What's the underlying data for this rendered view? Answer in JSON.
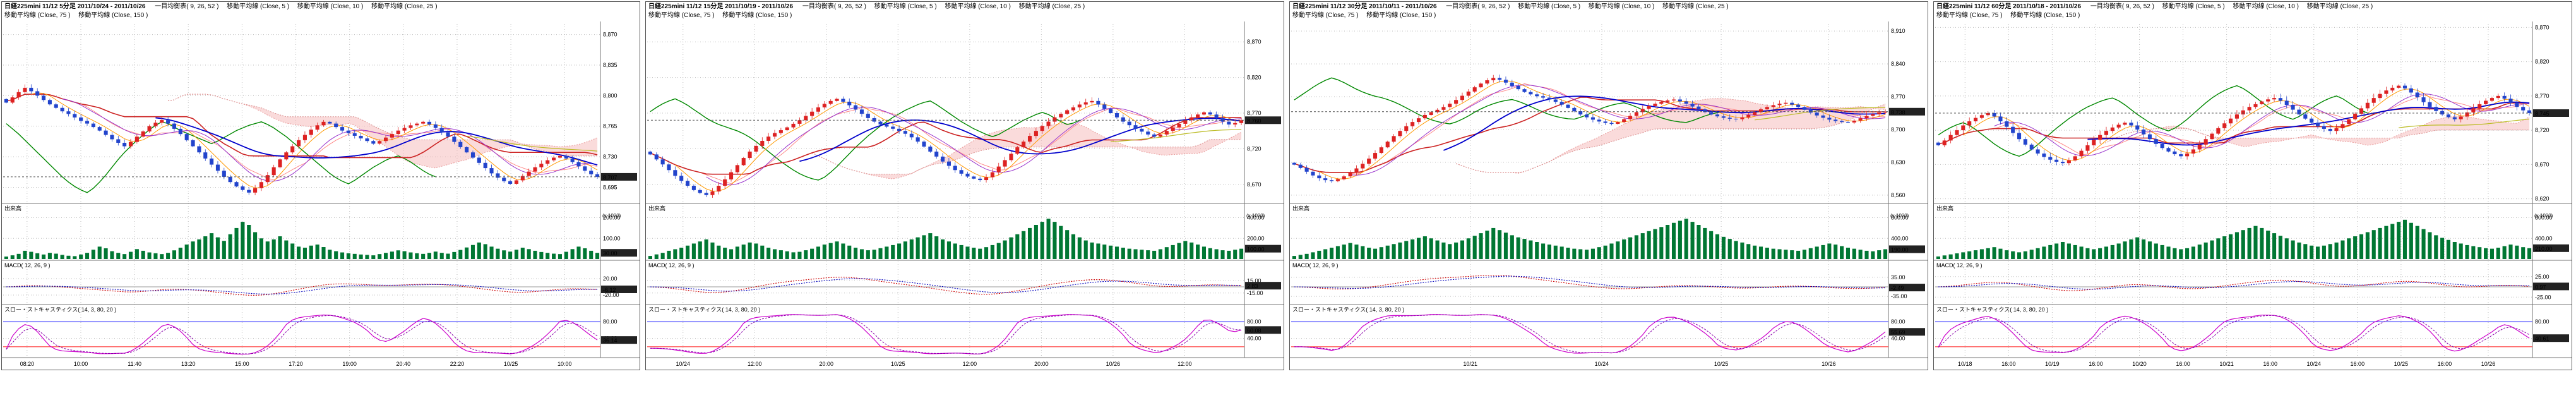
{
  "colors": {
    "up": "#dd2222",
    "down": "#2244cc",
    "volume": "#007733",
    "ma5": "#ff9900",
    "ma10": "#9933cc",
    "ma25": "#0000cc",
    "ma75": "#bbbb22",
    "ma150": "#888888",
    "tenkan": "#ff8888",
    "kijun": "#cc2222",
    "cloud": "#f5b8b8",
    "chikou": "#008800",
    "macd": "#cc0000",
    "signal": "#0000bb",
    "stoch_k": "#cc00cc",
    "stoch_d": "#8800aa",
    "band_upper": "#3333ff",
    "band_lower": "#ff3333",
    "grid": "#bbbbbb",
    "divider": "#777777",
    "badge_bg": "#222222",
    "badge_fg": "#ffffff"
  },
  "chart_data": [
    {
      "type": "candlestick",
      "title": "日経225mini 11/12 5分足 2011/10/24 - 2011/10/26",
      "legend": [
        "一目均衡表( 9, 26, 52 )",
        "移動平均線 (Close, 5 )",
        "移動平均線 (Close, 10 )",
        "移動平均線 (Close, 25 )",
        "移動平均線 (Close, 75 )",
        "移動平均線 (Close, 150 )"
      ],
      "sections": {
        "volume_label": "出来高",
        "volume_unit": "(x 1000)",
        "macd_label": "MACD( 12, 26, 9 )",
        "stoch_label": "スロー・ストキャスティクス( 14, 3, 80, 20 )"
      },
      "price_axis": {
        "min": 8678,
        "max": 8882,
        "ticks": [
          8870,
          8835,
          8800,
          8765,
          8730,
          8695
        ]
      },
      "volume_axis": {
        "max": 220,
        "ticks": [
          200,
          100
        ]
      },
      "macd_axis": {
        "scale": 40,
        "ticks": [
          20,
          -20
        ]
      },
      "stoch_axis": {
        "ticks": [
          80,
          40
        ],
        "upper": 80,
        "lower": 20
      },
      "x_labels": [
        {
          "t": "08:20",
          "p": 0.04
        },
        {
          "t": "10:00",
          "p": 0.13
        },
        {
          "t": "11:40",
          "p": 0.22
        },
        {
          "t": "13:20",
          "p": 0.31
        },
        {
          "t": "15:00",
          "p": 0.4
        },
        {
          "t": "17:20",
          "p": 0.49
        },
        {
          "t": "19:00",
          "p": 0.58
        },
        {
          "t": "20:40",
          "p": 0.67
        },
        {
          "t": "22:20",
          "p": 0.76
        },
        {
          "t": "10/25",
          "p": 0.85
        },
        {
          "t": "10:00",
          "p": 0.94
        }
      ],
      "spread": 1.0,
      "closes": [
        8792,
        8798,
        8804,
        8809,
        8805,
        8800,
        8795,
        8790,
        8786,
        8782,
        8779,
        8775,
        8771,
        8768,
        8764,
        8760,
        8755,
        8750,
        8746,
        8742,
        8747,
        8753,
        8759,
        8765,
        8769,
        8772,
        8768,
        8762,
        8756,
        8749,
        8742,
        8735,
        8728,
        8721,
        8714,
        8707,
        8701,
        8696,
        8692,
        8689,
        8694,
        8701,
        8709,
        8718,
        8727,
        8735,
        8742,
        8749,
        8755,
        8761,
        8766,
        8770,
        8768,
        8764,
        8760,
        8757,
        8754,
        8751,
        8748,
        8745,
        8748,
        8752,
        8756,
        8760,
        8763,
        8766,
        8768,
        8770,
        8767,
        8763,
        8758,
        8753,
        8747,
        8741,
        8735,
        8729,
        8723,
        8717,
        8711,
        8706,
        8702,
        8699,
        8703,
        8708,
        8713,
        8718,
        8722,
        8726,
        8729,
        8731,
        8728,
        8724,
        8719,
        8714,
        8710,
        8707
      ],
      "volumes": [
        12,
        18,
        25,
        40,
        35,
        28,
        22,
        30,
        26,
        20,
        16,
        14,
        22,
        30,
        45,
        60,
        52,
        38,
        30,
        24,
        35,
        48,
        40,
        32,
        28,
        24,
        30,
        42,
        55,
        70,
        85,
        95,
        110,
        125,
        105,
        88,
        120,
        150,
        180,
        165,
        130,
        100,
        85,
        95,
        110,
        90,
        75,
        60,
        55,
        65,
        70,
        58,
        45,
        38,
        32,
        28,
        25,
        22,
        20,
        18,
        24,
        30,
        36,
        42,
        38,
        32,
        28,
        25,
        30,
        36,
        30,
        26,
        34,
        44,
        56,
        68,
        80,
        72,
        60,
        50,
        42,
        36,
        45,
        55,
        48,
        40,
        34,
        30,
        26,
        24,
        35,
        48,
        60,
        52,
        40,
        30
      ]
    },
    {
      "type": "candlestick",
      "title": "日経225mini 11/12 15分足 2011/10/19 - 2011/10/26",
      "legend": [
        "一目均衡表( 9, 26, 52 )",
        "移動平均線 (Close, 5 )",
        "移動平均線 (Close, 10 )",
        "移動平均線 (Close, 25 )",
        "移動平均線 (Close, 75 )",
        "移動平均線 (Close, 150 )"
      ],
      "sections": {
        "volume_label": "出来高",
        "volume_unit": "(x 1000)",
        "macd_label": "MACD( 12, 26, 9 )",
        "stoch_label": "スロー・ストキャスティクス( 14, 3, 80, 20 )"
      },
      "price_axis": {
        "min": 8645,
        "max": 8895,
        "ticks": [
          8870,
          8820,
          8770,
          8720,
          8670
        ]
      },
      "volume_axis": {
        "max": 440,
        "ticks": [
          400,
          200
        ]
      },
      "macd_axis": {
        "scale": 40,
        "ticks": [
          15,
          -15
        ]
      },
      "stoch_axis": {
        "ticks": [
          80,
          40
        ],
        "upper": 80,
        "lower": 20
      },
      "x_labels": [
        {
          "t": "10/24",
          "p": 0.06
        },
        {
          "t": "12:00",
          "p": 0.18
        },
        {
          "t": "20:00",
          "p": 0.3
        },
        {
          "t": "10/25",
          "p": 0.42
        },
        {
          "t": "12:00",
          "p": 0.54
        },
        {
          "t": "20:00",
          "p": 0.66
        },
        {
          "t": "10/26",
          "p": 0.78
        },
        {
          "t": "12:00",
          "p": 0.9
        }
      ],
      "spread": 1.3,
      "closes": [
        8712,
        8705,
        8698,
        8690,
        8682,
        8675,
        8668,
        8662,
        8658,
        8655,
        8660,
        8668,
        8677,
        8687,
        8697,
        8707,
        8716,
        8724,
        8731,
        8737,
        8742,
        8746,
        8750,
        8755,
        8760,
        8766,
        8772,
        8778,
        8783,
        8787,
        8790,
        8786,
        8781,
        8775,
        8769,
        8763,
        8758,
        8754,
        8751,
        8748,
        8745,
        8741,
        8736,
        8730,
        8723,
        8716,
        8709,
        8702,
        8696,
        8690,
        8685,
        8681,
        8678,
        8676,
        8680,
        8687,
        8695,
        8704,
        8713,
        8722,
        8730,
        8738,
        8745,
        8752,
        8758,
        8764,
        8769,
        8774,
        8778,
        8782,
        8785,
        8787,
        8782,
        8776,
        8770,
        8764,
        8758,
        8753,
        8748,
        8744,
        8740,
        8737,
        8740,
        8745,
        8750,
        8755,
        8760,
        8764,
        8768,
        8771,
        8768,
        8763,
        8758,
        8754,
        8756,
        8760
      ],
      "volumes": [
        30,
        45,
        60,
        80,
        95,
        110,
        130,
        150,
        170,
        190,
        160,
        130,
        110,
        95,
        120,
        140,
        160,
        150,
        130,
        110,
        95,
        85,
        75,
        65,
        70,
        85,
        100,
        120,
        140,
        155,
        170,
        150,
        130,
        110,
        95,
        85,
        90,
        105,
        120,
        135,
        150,
        170,
        190,
        210,
        230,
        250,
        220,
        190,
        170,
        150,
        135,
        120,
        110,
        100,
        115,
        135,
        155,
        180,
        210,
        240,
        270,
        300,
        330,
        360,
        390,
        360,
        320,
        280,
        240,
        210,
        180,
        160,
        150,
        140,
        130,
        120,
        110,
        100,
        95,
        90,
        85,
        80,
        95,
        115,
        135,
        155,
        175,
        160,
        140,
        120,
        105,
        95,
        85,
        80,
        90,
        100
      ]
    },
    {
      "type": "candlestick",
      "title": "日経225mini 11/12 30分足 2011/10/11 - 2011/10/26",
      "legend": [
        "一目均衡表( 9, 26, 52 )",
        "移動平均線 (Close, 5 )",
        "移動平均線 (Close, 10 )",
        "移動平均線 (Close, 25 )",
        "移動平均線 (Close, 75 )",
        "移動平均線 (Close, 150 )"
      ],
      "sections": {
        "volume_label": "出来高",
        "volume_unit": "(x 1000)",
        "macd_label": "MACD( 12, 26, 9 )",
        "stoch_label": "スロー・ストキャスティクス( 14, 3, 80, 20 )"
      },
      "price_axis": {
        "min": 8545,
        "max": 8925,
        "ticks": [
          8910,
          8840,
          8770,
          8700,
          8630,
          8560
        ]
      },
      "volume_axis": {
        "max": 880,
        "ticks": [
          800,
          400
        ]
      },
      "macd_axis": {
        "scale": 60,
        "ticks": [
          35,
          -35
        ]
      },
      "stoch_axis": {
        "ticks": [
          80,
          40
        ],
        "upper": 80,
        "lower": 20
      },
      "x_labels": [
        {
          "t": "10/21",
          "p": 0.3
        },
        {
          "t": "10/24",
          "p": 0.52
        },
        {
          "t": "10/25",
          "p": 0.72
        },
        {
          "t": "10/26",
          "p": 0.9
        }
      ],
      "spread": 1.8,
      "closes": [
        8625,
        8618,
        8610,
        8602,
        8596,
        8592,
        8590,
        8594,
        8600,
        8608,
        8617,
        8627,
        8638,
        8650,
        8662,
        8674,
        8686,
        8697,
        8707,
        8716,
        8724,
        8731,
        8737,
        8742,
        8748,
        8755,
        8763,
        8772,
        8781,
        8790,
        8798,
        8805,
        8810,
        8806,
        8800,
        8793,
        8786,
        8780,
        8775,
        8771,
        8768,
        8764,
        8759,
        8753,
        8746,
        8739,
        8732,
        8726,
        8721,
        8717,
        8714,
        8712,
        8716,
        8722,
        8729,
        8737,
        8744,
        8750,
        8755,
        8759,
        8762,
        8764,
        8760,
        8755,
        8749,
        8743,
        8737,
        8732,
        8728,
        8725,
        8723,
        8722,
        8726,
        8731,
        8737,
        8743,
        8748,
        8752,
        8755,
        8757,
        8753,
        8748,
        8742,
        8736,
        8730,
        8725,
        8721,
        8718,
        8716,
        8715,
        8719,
        8724,
        8729,
        8733,
        8736,
        8738
      ],
      "volumes": [
        60,
        80,
        100,
        130,
        160,
        190,
        220,
        250,
        280,
        310,
        280,
        250,
        220,
        200,
        230,
        260,
        290,
        320,
        350,
        380,
        410,
        440,
        400,
        360,
        320,
        290,
        320,
        360,
        400,
        450,
        500,
        550,
        600,
        560,
        510,
        460,
        420,
        390,
        360,
        330,
        300,
        280,
        260,
        240,
        220,
        200,
        190,
        180,
        200,
        230,
        260,
        300,
        340,
        380,
        420,
        460,
        500,
        540,
        580,
        620,
        660,
        700,
        740,
        780,
        720,
        660,
        600,
        540,
        480,
        430,
        390,
        350,
        320,
        290,
        260,
        240,
        220,
        200,
        190,
        180,
        170,
        160,
        180,
        210,
        240,
        270,
        300,
        280,
        250,
        220,
        200,
        180,
        160,
        150,
        170,
        190
      ]
    },
    {
      "type": "candlestick",
      "title": "日経225mini 11/12 60分足 2011/10/18 - 2011/10/26",
      "legend": [
        "一目均衡表( 9, 26, 52 )",
        "移動平均線 (Close, 5 )",
        "移動平均線 (Close, 10 )",
        "移動平均線 (Close, 25 )",
        "移動平均線 (Close, 75 )",
        "移動平均線 (Close, 150 )"
      ],
      "sections": {
        "volume_label": "出来高",
        "volume_unit": "(x 1000)",
        "macd_label": "MACD( 12, 26, 9 )",
        "stoch_label": "スロー・ストキャスティクス( 14, 3, 80, 20 )"
      },
      "price_axis": {
        "min": 8615,
        "max": 8875,
        "ticks": [
          8870,
          8820,
          8770,
          8720,
          8670,
          8620
        ]
      },
      "volume_axis": {
        "max": 880,
        "ticks": [
          800,
          400
        ]
      },
      "macd_axis": {
        "scale": 40,
        "ticks": [
          25,
          -25
        ]
      },
      "stoch_axis": {
        "ticks": [
          80,
          40
        ],
        "upper": 80,
        "lower": 20
      },
      "x_labels": [
        {
          "t": "10/18",
          "p": 0.05
        },
        {
          "t": "16:00",
          "p": 0.123
        },
        {
          "t": "10/19",
          "p": 0.196
        },
        {
          "t": "16:00",
          "p": 0.269
        },
        {
          "t": "10/20",
          "p": 0.342
        },
        {
          "t": "16:00",
          "p": 0.415
        },
        {
          "t": "10/21",
          "p": 0.488
        },
        {
          "t": "16:00",
          "p": 0.561
        },
        {
          "t": "10/24",
          "p": 0.634
        },
        {
          "t": "16:00",
          "p": 0.707
        },
        {
          "t": "10/25",
          "p": 0.78
        },
        {
          "t": "16:00",
          "p": 0.853
        },
        {
          "t": "10/26",
          "p": 0.926
        }
      ],
      "spread": 1.6,
      "closes": [
        8698,
        8705,
        8713,
        8720,
        8727,
        8733,
        8738,
        8742,
        8745,
        8740,
        8733,
        8725,
        8716,
        8707,
        8699,
        8692,
        8686,
        8681,
        8677,
        8674,
        8672,
        8676,
        8682,
        8690,
        8698,
        8706,
        8713,
        8719,
        8724,
        8728,
        8731,
        8727,
        8721,
        8714,
        8707,
        8700,
        8694,
        8689,
        8685,
        8682,
        8686,
        8692,
        8699,
        8707,
        8715,
        8723,
        8730,
        8737,
        8743,
        8749,
        8754,
        8758,
        8762,
        8765,
        8767,
        8763,
        8757,
        8750,
        8743,
        8737,
        8731,
        8726,
        8722,
        8719,
        8723,
        8729,
        8736,
        8744,
        8752,
        8760,
        8767,
        8773,
        8778,
        8782,
        8785,
        8781,
        8775,
        8768,
        8761,
        8754,
        8748,
        8743,
        8739,
        8736,
        8740,
        8746,
        8752,
        8758,
        8763,
        8767,
        8770,
        8766,
        8760,
        8754,
        8749,
        8745
      ],
      "volumes": [
        50,
        70,
        90,
        110,
        130,
        150,
        170,
        190,
        210,
        230,
        200,
        170,
        150,
        130,
        150,
        180,
        210,
        240,
        270,
        300,
        330,
        300,
        270,
        240,
        210,
        190,
        210,
        240,
        270,
        300,
        340,
        380,
        420,
        380,
        340,
        300,
        270,
        240,
        210,
        190,
        210,
        240,
        280,
        320,
        360,
        400,
        440,
        480,
        520,
        560,
        600,
        640,
        600,
        550,
        500,
        450,
        400,
        360,
        320,
        290,
        260,
        240,
        260,
        290,
        320,
        360,
        400,
        440,
        480,
        520,
        560,
        600,
        640,
        680,
        720,
        760,
        700,
        640,
        580,
        520,
        460,
        410,
        370,
        330,
        300,
        270,
        250,
        230,
        210,
        200,
        220,
        250,
        280,
        260,
        230,
        210
      ]
    }
  ]
}
